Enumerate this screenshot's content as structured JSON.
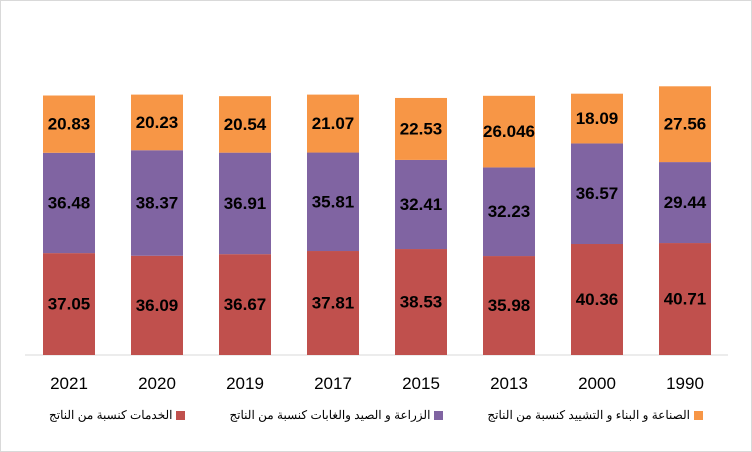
{
  "chart_data": {
    "type": "bar",
    "stacked": true,
    "categories": [
      "2021",
      "2020",
      "2019",
      "2017",
      "2015",
      "2013",
      "2000",
      "1990"
    ],
    "series": [
      {
        "name": "الخدمات كنسبة من الناتج",
        "color": "#C0504D",
        "values": [
          37.05,
          36.09,
          36.67,
          37.81,
          38.53,
          35.98,
          40.36,
          40.71
        ],
        "labels": [
          "37.05",
          "36.09",
          "36.67",
          "37.81",
          "38.53",
          "35.98",
          "40.36",
          "40.71"
        ]
      },
      {
        "name": "الزراعة و الصيد والغابات كنسبة من الناتج",
        "color": "#8064A2",
        "values": [
          36.48,
          38.37,
          36.91,
          35.81,
          32.41,
          32.23,
          36.57,
          29.44
        ],
        "labels": [
          "36.48",
          "38.37",
          "36.91",
          "35.81",
          "32.41",
          "32.23",
          "36.57",
          "29.44"
        ]
      },
      {
        "name": "الصناعة و البناء و التشييد كنسبة من الناتج",
        "color": "#F79646",
        "values": [
          20.83,
          20.23,
          20.54,
          21.07,
          22.53,
          26.046,
          18.09,
          27.56
        ],
        "labels": [
          "20.83",
          "20.23",
          "20.54",
          "21.07",
          "22.53",
          "26.046",
          "18.09",
          "27.56"
        ]
      }
    ],
    "title": "",
    "xlabel": "",
    "ylabel": "",
    "ylim": [
      0,
      100
    ],
    "grid": false,
    "legend": "bottom"
  }
}
